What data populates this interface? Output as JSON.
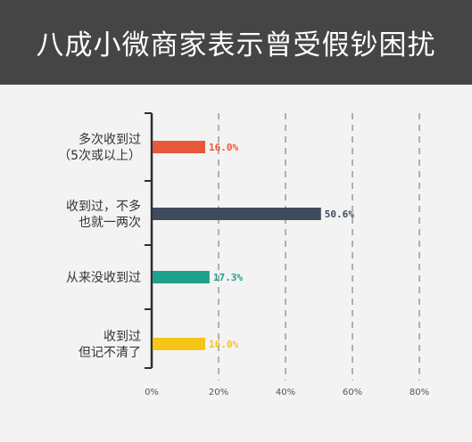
{
  "chart_data": {
    "type": "bar",
    "orientation": "horizontal",
    "title": "八成小微商家表示曾受假钞困扰",
    "categories": [
      [
        "多次收到过",
        "（5次或以上）"
      ],
      [
        "收到过，不多",
        "也就一两次"
      ],
      [
        "从来没收到过"
      ],
      [
        "收到过",
        "但记不清了"
      ]
    ],
    "values": [
      16.0,
      50.6,
      17.3,
      16.0
    ],
    "data_labels": [
      "16.0%",
      "50.6%",
      "17.3%",
      "16.0%"
    ],
    "colors": [
      "#e8583a",
      "#3d4b5c",
      "#1fa08a",
      "#f5c518"
    ],
    "xlim": [
      0,
      80
    ],
    "xticks": [
      "0%",
      "20%",
      "40%",
      "60%",
      "80%"
    ],
    "xtick_values": [
      0,
      20,
      40,
      60,
      80
    ],
    "grid": true
  }
}
